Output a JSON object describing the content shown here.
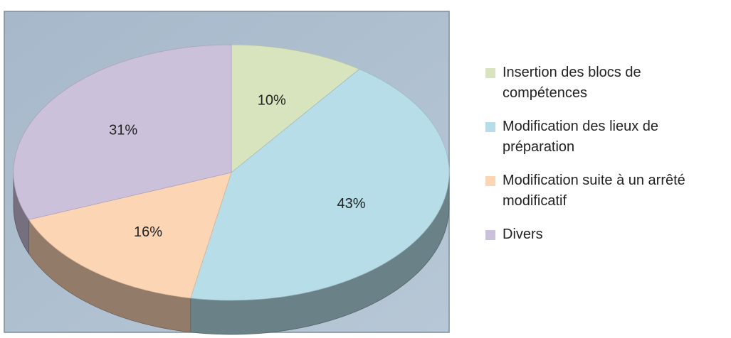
{
  "chart_data": {
    "type": "pie",
    "style": "3d",
    "title": "",
    "categories": [
      "Insertion des blocs de compétences",
      "Modification des lieux de préparation",
      "Modification suite à un arrêté modificatif",
      "Divers"
    ],
    "values": [
      10,
      43,
      16,
      31
    ],
    "labels": [
      "10%",
      "43%",
      "16%",
      "31%"
    ],
    "colors": [
      "#d7e4bd",
      "#b7dee8",
      "#fcd5b5",
      "#ccc1da"
    ],
    "start_direction": "top, clockwise",
    "legend_position": "right",
    "legend": [
      {
        "name": "Insertion des blocs de compétences",
        "lines": [
          "Insertion des blocs de",
          "compétences"
        ],
        "color": "#d7e4bd"
      },
      {
        "name": "Modification des lieux de préparation",
        "lines": [
          "Modification des lieux de",
          "préparation"
        ],
        "color": "#b7dee8"
      },
      {
        "name": "Modification suite à un arrêté modificatif",
        "lines": [
          "Modification suite à un arrêté",
          "modificatif"
        ],
        "color": "#fcd5b5"
      },
      {
        "name": "Divers",
        "lines": [
          "Divers"
        ],
        "color": "#ccc1da"
      }
    ]
  }
}
